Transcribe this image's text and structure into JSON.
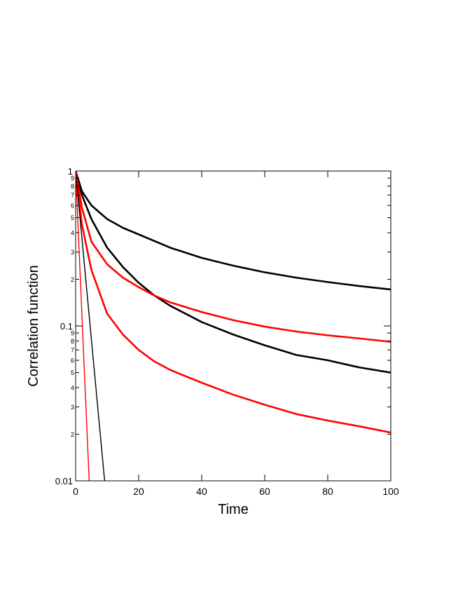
{
  "chart_data": {
    "type": "line",
    "xlabel": "Time",
    "ylabel": "Correlation function",
    "xlim": [
      0,
      100
    ],
    "ylim": [
      0.01,
      1
    ],
    "y_scale": "log",
    "grid": false,
    "legend": "none",
    "x_ticks": [
      {
        "value": 0,
        "label": "0"
      },
      {
        "value": 20,
        "label": "20"
      },
      {
        "value": 40,
        "label": "40"
      },
      {
        "value": 60,
        "label": "60"
      },
      {
        "value": 80,
        "label": "80"
      },
      {
        "value": 100,
        "label": "100"
      }
    ],
    "y_major_ticks": [
      {
        "value": 0.01,
        "label": "0.01"
      },
      {
        "value": 0.1,
        "label": "0.1"
      },
      {
        "value": 1,
        "label": "1"
      }
    ],
    "y_minor_ticks": [
      {
        "value": 0.02,
        "label": "2"
      },
      {
        "value": 0.03,
        "label": "3"
      },
      {
        "value": 0.04,
        "label": "4"
      },
      {
        "value": 0.05,
        "label": "5"
      },
      {
        "value": 0.06,
        "label": "6"
      },
      {
        "value": 0.07,
        "label": "7"
      },
      {
        "value": 0.08,
        "label": "8"
      },
      {
        "value": 0.09,
        "label": "9"
      },
      {
        "value": 0.2,
        "label": "2"
      },
      {
        "value": 0.3,
        "label": "3"
      },
      {
        "value": 0.4,
        "label": "4"
      },
      {
        "value": 0.5,
        "label": "5"
      },
      {
        "value": 0.6,
        "label": "6"
      },
      {
        "value": 0.7,
        "label": "7"
      },
      {
        "value": 0.8,
        "label": "8"
      },
      {
        "value": 0.9,
        "label": "9"
      }
    ],
    "series": [
      {
        "color": "#000000",
        "thick": true,
        "x": [
          0,
          2,
          5,
          10,
          15,
          20,
          30,
          40,
          50,
          60,
          70,
          80,
          90,
          100
        ],
        "y": [
          1,
          0.74,
          0.6,
          0.49,
          0.43,
          0.39,
          0.32,
          0.275,
          0.245,
          0.222,
          0.205,
          0.192,
          0.181,
          0.172
        ]
      },
      {
        "color": "#000000",
        "thick": true,
        "x": [
          0,
          2,
          5,
          10,
          15,
          20,
          25,
          30,
          40,
          50,
          60,
          70,
          80,
          90,
          100
        ],
        "y": [
          1,
          0.7,
          0.49,
          0.32,
          0.24,
          0.19,
          0.157,
          0.135,
          0.106,
          0.088,
          0.075,
          0.065,
          0.06,
          0.054,
          0.05
        ]
      },
      {
        "color": "#ff0000",
        "thick": true,
        "x": [
          0,
          2,
          5,
          10,
          15,
          20,
          25,
          30,
          40,
          50,
          60,
          70,
          80,
          90,
          100
        ],
        "y": [
          1,
          0.58,
          0.35,
          0.25,
          0.205,
          0.178,
          0.157,
          0.142,
          0.123,
          0.109,
          0.099,
          0.092,
          0.087,
          0.083,
          0.079
        ]
      },
      {
        "color": "#ff0000",
        "thick": true,
        "x": [
          0,
          2,
          5,
          10,
          15,
          20,
          25,
          30,
          40,
          50,
          60,
          70,
          80,
          90,
          100
        ],
        "y": [
          1,
          0.45,
          0.23,
          0.12,
          0.088,
          0.07,
          0.059,
          0.052,
          0.043,
          0.036,
          0.031,
          0.027,
          0.0245,
          0.0225,
          0.0205
        ]
      },
      {
        "color": "#000000",
        "thick": false,
        "x": [
          0,
          9.2
        ],
        "y": [
          1,
          0.01
        ]
      },
      {
        "color": "#ff0000",
        "thick": false,
        "x": [
          0,
          4.3
        ],
        "y": [
          1,
          0.01
        ]
      }
    ]
  }
}
